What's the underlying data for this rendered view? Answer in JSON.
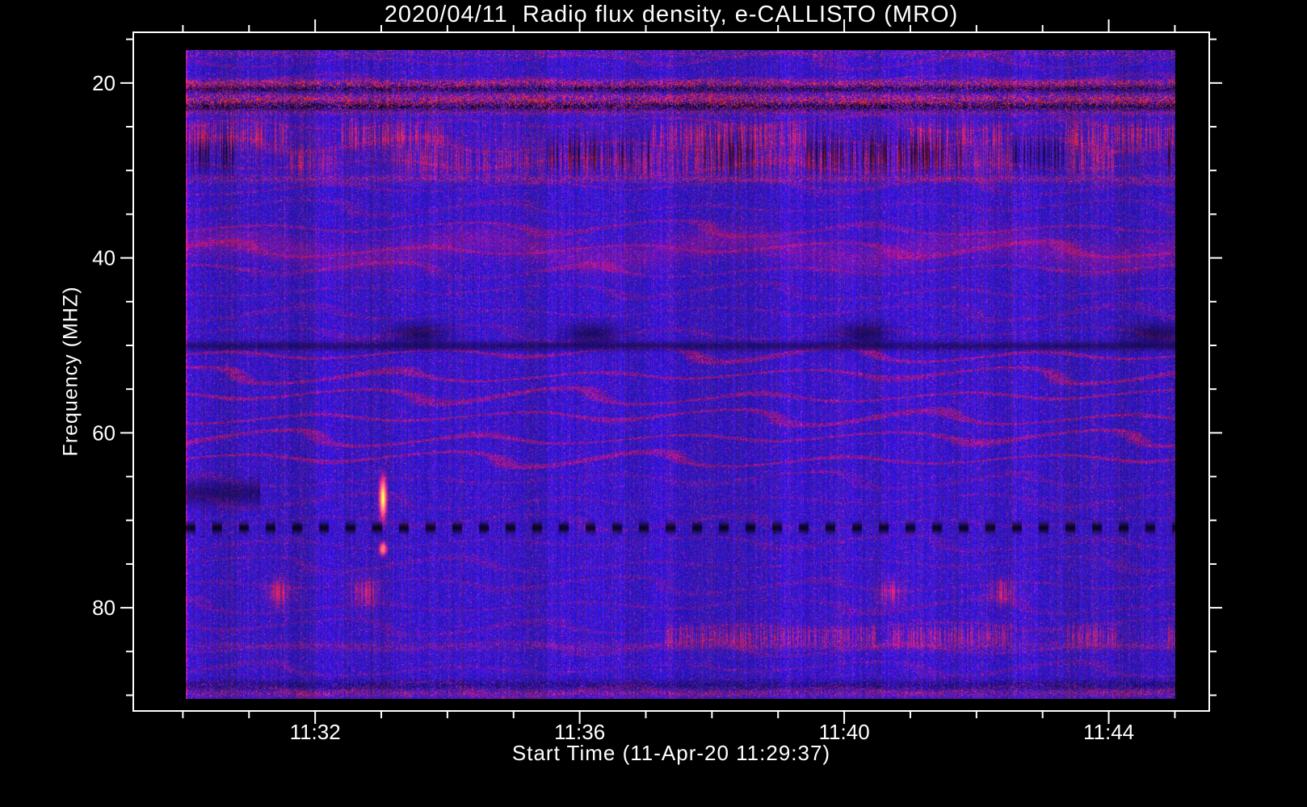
{
  "title": "2020/04/11  Radio flux density, e-CALLISTO (MRO)",
  "colors": {
    "background": "#000000",
    "axis": "#ffffff",
    "text": "#ffffff",
    "base_blue": "#2a14c8",
    "rfi_red": "#cc2020"
  },
  "x_axis": {
    "title": "Start Time (11-Apr-20 11:29:37)",
    "range_minutes": [
      29.25,
      45.52
    ],
    "major_ticks": [
      {
        "label": "11:32",
        "minutes": 32
      },
      {
        "label": "11:36",
        "minutes": 36
      },
      {
        "label": "11:40",
        "minutes": 40
      },
      {
        "label": "11:44",
        "minutes": 44
      }
    ],
    "minor_tick_minutes": [
      30,
      31,
      33,
      34,
      35,
      37,
      38,
      39,
      41,
      42,
      43,
      45
    ]
  },
  "y_axis": {
    "title": "Frequency (MHZ)",
    "range_mhz": [
      14.2,
      91.8
    ],
    "major_ticks": [
      {
        "label": "20",
        "mhz": 20
      },
      {
        "label": "40",
        "mhz": 40
      },
      {
        "label": "60",
        "mhz": 60
      },
      {
        "label": "80",
        "mhz": 80
      }
    ],
    "minor_tick_mhz": [
      15,
      25,
      30,
      35,
      45,
      50,
      55,
      65,
      70,
      75,
      85,
      90
    ]
  },
  "chart_data": {
    "type": "heatmap",
    "title": "2020/04/11  Radio flux density, e-CALLISTO (MRO)",
    "xlabel": "Start Time (11-Apr-20 11:29:37)",
    "ylabel": "Frequency (MHZ)",
    "time_range": [
      "11:30:05",
      "11:45:00"
    ],
    "freq_range_mhz": [
      16.2,
      90.4
    ],
    "ripple_default": 0.4,
    "ripple_zones": [
      {
        "range": [
          50.5,
          64.5
        ],
        "strength": 1.0
      },
      {
        "range": [
          35.5,
          41.5
        ],
        "strength": 0.7
      },
      {
        "range": [
          16.2,
          32.0
        ],
        "strength": 0.45
      },
      {
        "range": [
          64.5,
          76.0
        ],
        "strength": 0.35
      }
    ],
    "features": [
      {
        "name": "top-edge-speckle",
        "f": 16.5,
        "width": 0.35,
        "pattern": "red-speckle",
        "intensity": 0.35
      },
      {
        "name": "rfi-line-20",
        "f": 20.0,
        "width": 0.35,
        "pattern": "red-speckle",
        "intensity": 0.9
      },
      {
        "name": "rfi-dark-20.6",
        "f": 20.6,
        "width": 0.3,
        "pattern": "dark-speckle",
        "intensity": 0.8
      },
      {
        "name": "rfi-band-22",
        "f": 21.9,
        "width": 0.55,
        "pattern": "red-speckle",
        "intensity": 1.0
      },
      {
        "name": "rfi-dark-22.6",
        "f": 22.6,
        "width": 0.35,
        "pattern": "dark-speckle",
        "intensity": 0.85
      },
      {
        "name": "rfi-line-23.3",
        "f": 23.3,
        "width": 0.25,
        "pattern": "red-speckle",
        "intensity": 0.4
      },
      {
        "name": "band-26-red-stripes",
        "f": 26.0,
        "width": 1.1,
        "pattern": "red-vstripe",
        "intensity": 0.7
      },
      {
        "name": "band-28-dark-stripes",
        "f": 28.1,
        "width": 1.5,
        "pattern": "dark-vstripe",
        "intensity": 0.6
      },
      {
        "name": "band-29-red-stripes",
        "f": 28.9,
        "width": 1.2,
        "pattern": "red-vstripe",
        "intensity": 0.5
      },
      {
        "name": "line-31-red",
        "f": 30.9,
        "width": 0.3,
        "pattern": "red-speckle",
        "intensity": 0.45
      },
      {
        "name": "wavy-39",
        "f": 39.0,
        "width": 1.2,
        "pattern": "red-wavy",
        "intensity": 0.3
      },
      {
        "name": "dark-line-50",
        "f": 50.0,
        "width": 0.35,
        "pattern": "dark",
        "intensity": 0.5
      },
      {
        "name": "dark-blobs-48.6",
        "f": 48.6,
        "width": 0.9,
        "pattern": "dark-blobs",
        "intensity": 0.5,
        "centers": [
          33.6,
          36.2,
          40.3,
          44.7
        ]
      },
      {
        "name": "dark-patch-67-left",
        "f": 66.8,
        "width": 1.0,
        "pattern": "dark",
        "intensity": 0.5,
        "t": [
          30.08,
          31.2
        ]
      },
      {
        "name": "burst-67-at-1133",
        "f": 67.4,
        "width": 1.5,
        "pattern": "point",
        "intensity": 1.0,
        "centers": [
          33.05
        ]
      },
      {
        "name": "burst-73-at-1133",
        "f": 73.2,
        "width": 0.5,
        "pattern": "point",
        "intensity": 0.7,
        "centers": [
          33.05
        ]
      },
      {
        "name": "dashed-dark-71",
        "f": 70.8,
        "width": 0.4,
        "pattern": "dark-dashed",
        "intensity": 0.92
      },
      {
        "name": "red-blobs-78",
        "f": 78.2,
        "width": 1.0,
        "pattern": "red-blobs",
        "intensity": 0.65,
        "centers": [
          31.5,
          32.8,
          40.7,
          42.4
        ]
      },
      {
        "name": "stripe-83-right-half",
        "f": 83.2,
        "width": 0.8,
        "pattern": "red-vstripe",
        "intensity": 0.55,
        "t": [
          37.3,
          45.0
        ]
      },
      {
        "name": "speckle-84",
        "f": 84.3,
        "width": 0.35,
        "pattern": "red-speckle",
        "intensity": 0.3
      },
      {
        "name": "dark-88.8",
        "f": 88.8,
        "width": 0.45,
        "pattern": "dark-speckle",
        "intensity": 0.5
      },
      {
        "name": "bottom-edge-speckle",
        "f": 89.7,
        "width": 0.35,
        "pattern": "red-speckle",
        "intensity": 0.45
      }
    ]
  }
}
